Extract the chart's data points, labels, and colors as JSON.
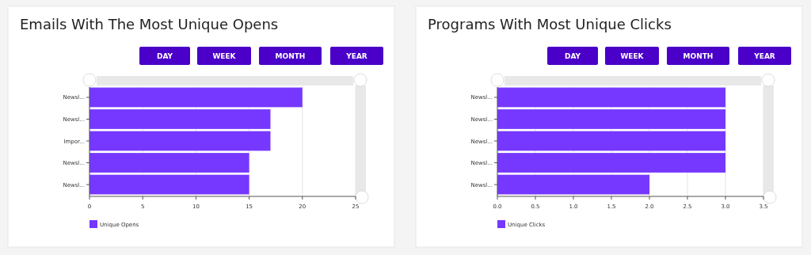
{
  "chart_data": [
    {
      "type": "bar",
      "orientation": "horizontal",
      "title": "Emails With The Most Unique Opens",
      "annotations": [
        "DAY",
        "WEEK",
        "MONTH",
        "YEAR"
      ],
      "categories": [
        "Newsl...",
        "Newsl...",
        "Impor...",
        "Newsl...",
        "Newsl..."
      ],
      "series": [
        {
          "name": "Unique Opens",
          "color": "#7638ff",
          "values": [
            20,
            17,
            17,
            15,
            15
          ]
        }
      ],
      "xlim": [
        0,
        25
      ],
      "xticks": [
        0,
        5,
        10,
        15,
        20,
        25
      ],
      "grid": "x",
      "legend": "bottom left"
    },
    {
      "type": "bar",
      "orientation": "horizontal",
      "title": "Programs With Most Unique Clicks",
      "annotations": [
        "DAY",
        "WEEK",
        "MONTH",
        "YEAR"
      ],
      "categories": [
        "Newsl...",
        "Newsl...",
        "Newsl...",
        "Newsl...",
        "Newsl..."
      ],
      "series": [
        {
          "name": "Unique Clicks",
          "color": "#7638ff",
          "values": [
            3,
            3,
            3,
            3,
            2
          ]
        }
      ],
      "xlim": [
        0,
        3.5
      ],
      "xticks": [
        {
          "value": 0,
          "label": "0.0"
        },
        {
          "value": 0.5,
          "label": "0.5"
        },
        {
          "value": 1,
          "label": "1.0"
        },
        {
          "value": 1.5,
          "label": "1.5"
        },
        {
          "value": 2,
          "label": "2.0"
        },
        {
          "value": 2.5,
          "label": "2.5"
        },
        {
          "value": 3,
          "label": "3.0"
        },
        {
          "value": 3.5,
          "label": "3.5"
        }
      ],
      "grid": "x",
      "legend": "bottom left"
    }
  ]
}
